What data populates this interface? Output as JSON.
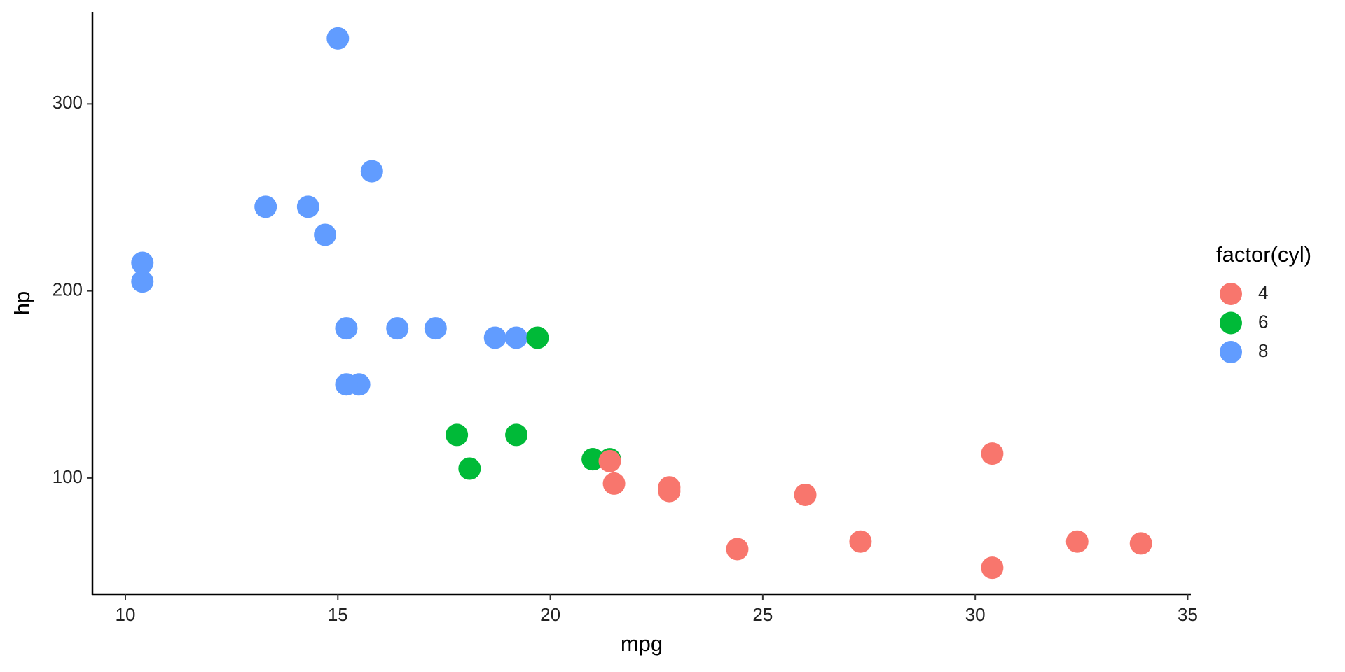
{
  "chart_data": {
    "type": "scatter",
    "x_label": "mpg",
    "y_label": "hp",
    "legend_title": "factor(cyl)",
    "legend_position": "right",
    "xlim": [
      9.225,
      35.075
    ],
    "ylim": [
      37.85,
      349.15
    ],
    "xticks": [
      10,
      15,
      20,
      25,
      30,
      35
    ],
    "yticks": [
      100,
      200,
      300
    ],
    "grid": false,
    "series": [
      {
        "name": "4",
        "color": "#F8766D",
        "x": [
          22.8,
          24.4,
          22.8,
          32.4,
          30.4,
          33.9,
          21.5,
          27.3,
          26.0,
          30.4,
          21.4
        ],
        "values": [
          93,
          62,
          95,
          66,
          52,
          65,
          97,
          66,
          91,
          113,
          109
        ]
      },
      {
        "name": "6",
        "color": "#00BA38",
        "x": [
          21.0,
          21.0,
          21.4,
          18.1,
          19.2,
          17.8,
          19.7
        ],
        "values": [
          110,
          110,
          110,
          105,
          123,
          123,
          175
        ]
      },
      {
        "name": "8",
        "color": "#619CFF",
        "x": [
          18.7,
          14.3,
          16.4,
          17.3,
          15.2,
          10.4,
          10.4,
          14.7,
          15.5,
          15.2,
          13.3,
          19.2,
          15.8,
          15.0
        ],
        "values": [
          175,
          245,
          180,
          180,
          180,
          205,
          215,
          230,
          150,
          150,
          245,
          175,
          264,
          335
        ]
      }
    ]
  }
}
